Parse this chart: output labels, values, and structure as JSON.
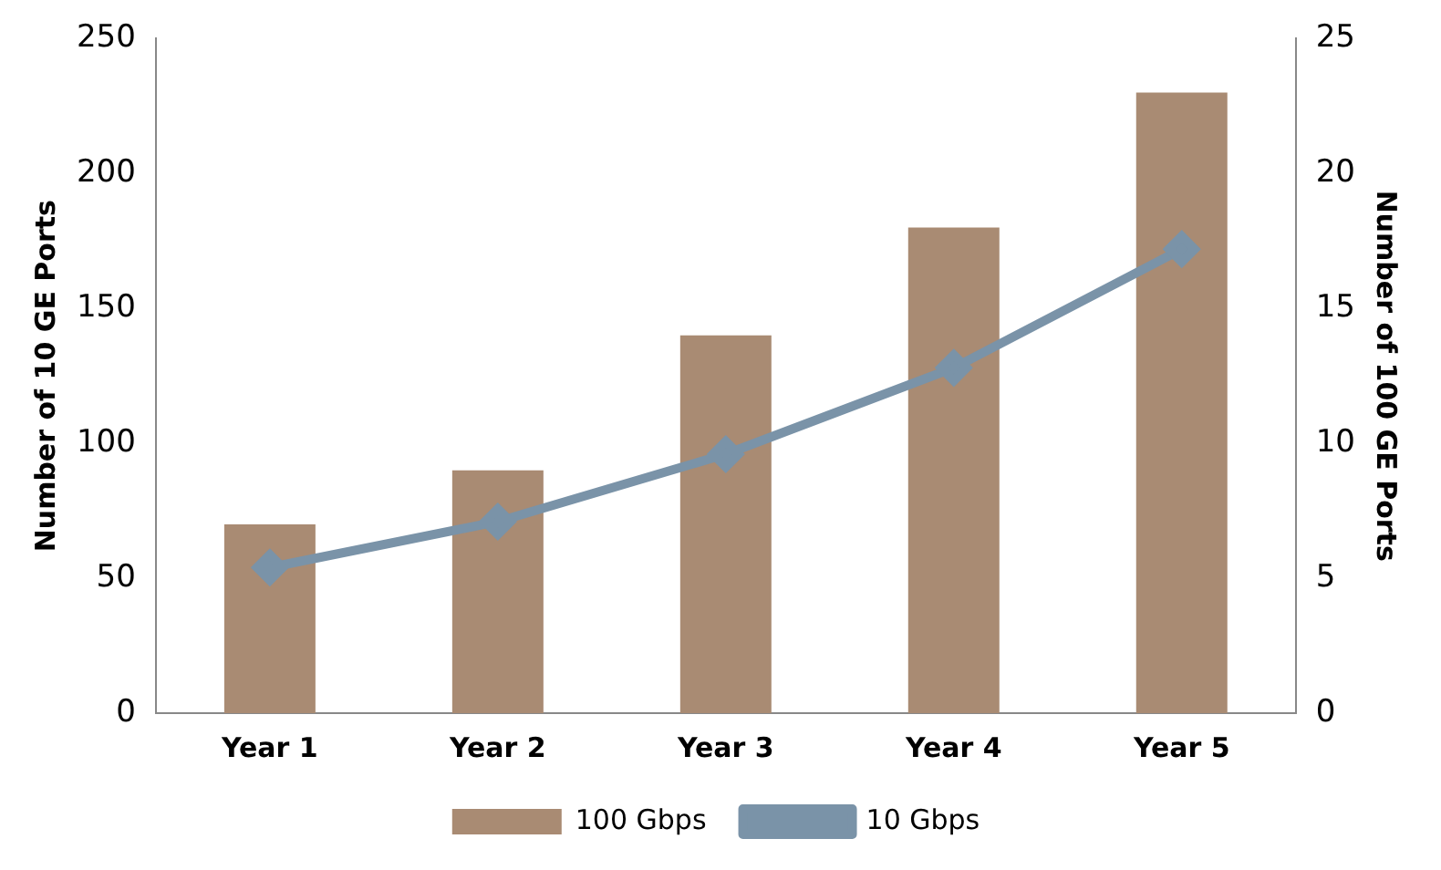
{
  "chart_data": {
    "type": "bar",
    "categories": [
      "Year 1",
      "Year 2",
      "Year 3",
      "Year 4",
      "Year 5"
    ],
    "series": [
      {
        "name": "100 Gbps",
        "axis": "y2",
        "color": "#a98b73",
        "values": [
          7,
          9,
          14,
          18,
          23
        ]
      },
      {
        "name": "10 Gbps",
        "type": "line",
        "color": "#7a93a8",
        "values": [
          54,
          71,
          96,
          128,
          172
        ]
      }
    ],
    "ylabel": "Number of 10 GE Ports",
    "y2label": "Number of 100 GE Ports",
    "ylim": [
      0,
      250
    ],
    "yticks": [
      0,
      50,
      100,
      150,
      200,
      250
    ],
    "y2lim": [
      0,
      25
    ],
    "y2ticks": [
      0,
      5,
      10,
      15,
      20,
      25
    ],
    "grid": false,
    "legend": "bottom",
    "marker": "diamond",
    "line_style": "solid"
  }
}
